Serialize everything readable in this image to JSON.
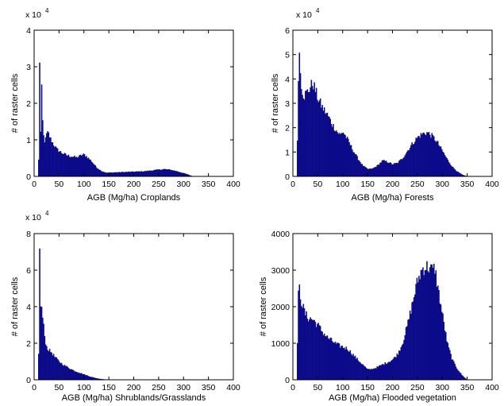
{
  "colors": {
    "bar": "#0b0b8a"
  },
  "chart_data": [
    {
      "type": "bar",
      "xlabel": "AGB (Mg/ha) Croplands",
      "ylabel": "# of raster cells",
      "xlim": [
        0,
        400
      ],
      "ylim": [
        0,
        40000
      ],
      "x_ticks": [
        "0",
        "50",
        "100",
        "150",
        "200",
        "250",
        "300",
        "350",
        "400"
      ],
      "y_ticks": [
        "0",
        "1",
        "2",
        "3",
        "4"
      ],
      "y_exponent": {
        "base": "x 10",
        "power": "4"
      },
      "bin_width": 2,
      "profile": [
        [
          8,
          0
        ],
        [
          10,
          9000
        ],
        [
          11,
          32000
        ],
        [
          12,
          9000
        ],
        [
          13,
          12000
        ],
        [
          14,
          18000
        ],
        [
          15,
          23500
        ],
        [
          16,
          18000
        ],
        [
          18,
          12000
        ],
        [
          20,
          10000
        ],
        [
          22,
          9500
        ],
        [
          25,
          11500
        ],
        [
          28,
          12000
        ],
        [
          32,
          10500
        ],
        [
          38,
          9000
        ],
        [
          45,
          7500
        ],
        [
          55,
          6500
        ],
        [
          65,
          5800
        ],
        [
          75,
          5500
        ],
        [
          85,
          5200
        ],
        [
          95,
          5800
        ],
        [
          100,
          6000
        ],
        [
          105,
          5500
        ],
        [
          115,
          4200
        ],
        [
          125,
          2500
        ],
        [
          135,
          1500
        ],
        [
          145,
          1000
        ],
        [
          160,
          1100
        ],
        [
          180,
          1200
        ],
        [
          200,
          1300
        ],
        [
          220,
          1400
        ],
        [
          240,
          1700
        ],
        [
          260,
          2000
        ],
        [
          275,
          1800
        ],
        [
          290,
          1300
        ],
        [
          305,
          700
        ],
        [
          315,
          200
        ],
        [
          320,
          0
        ]
      ]
    },
    {
      "type": "bar",
      "xlabel": "AGB (Mg/ha) Forests",
      "ylabel": "# of raster cells",
      "xlim": [
        0,
        400
      ],
      "ylim": [
        0,
        60000
      ],
      "x_ticks": [
        "0",
        "50",
        "100",
        "150",
        "200",
        "250",
        "300",
        "350",
        "400"
      ],
      "y_ticks": [
        "0",
        "1",
        "2",
        "3",
        "4",
        "5",
        "6"
      ],
      "y_exponent": {
        "base": "x 10",
        "power": "4"
      },
      "bin_width": 2,
      "profile": [
        [
          8,
          0
        ],
        [
          10,
          30000
        ],
        [
          12,
          54000
        ],
        [
          14,
          46000
        ],
        [
          16,
          40000
        ],
        [
          18,
          36000
        ],
        [
          22,
          33000
        ],
        [
          26,
          34000
        ],
        [
          30,
          35000
        ],
        [
          36,
          37000
        ],
        [
          40,
          38500
        ],
        [
          44,
          36000
        ],
        [
          50,
          32000
        ],
        [
          60,
          28000
        ],
        [
          70,
          25000
        ],
        [
          80,
          21000
        ],
        [
          90,
          18000
        ],
        [
          95,
          17000
        ],
        [
          100,
          18500
        ],
        [
          110,
          15000
        ],
        [
          120,
          11000
        ],
        [
          130,
          7500
        ],
        [
          140,
          4500
        ],
        [
          150,
          3000
        ],
        [
          160,
          3200
        ],
        [
          170,
          4500
        ],
        [
          180,
          6500
        ],
        [
          190,
          6000
        ],
        [
          200,
          5000
        ],
        [
          210,
          5500
        ],
        [
          220,
          7500
        ],
        [
          230,
          10500
        ],
        [
          240,
          13500
        ],
        [
          250,
          16000
        ],
        [
          260,
          17500
        ],
        [
          270,
          18000
        ],
        [
          280,
          16500
        ],
        [
          290,
          14000
        ],
        [
          300,
          10500
        ],
        [
          310,
          7000
        ],
        [
          320,
          4000
        ],
        [
          330,
          2000
        ],
        [
          340,
          700
        ],
        [
          350,
          0
        ]
      ]
    },
    {
      "type": "bar",
      "xlabel": "AGB (Mg/ha) Shrublands/Grasslands",
      "ylabel": "# of raster cells",
      "xlim": [
        0,
        400
      ],
      "ylim": [
        0,
        80000
      ],
      "x_ticks": [
        "0",
        "50",
        "100",
        "150",
        "200",
        "250",
        "300",
        "350",
        "400"
      ],
      "y_ticks": [
        "0",
        "2",
        "4",
        "6",
        "8"
      ],
      "y_exponent": {
        "base": "x 10",
        "power": "4"
      },
      "bin_width": 2,
      "profile": [
        [
          8,
          0
        ],
        [
          10,
          30000
        ],
        [
          11,
          69000
        ],
        [
          12,
          40000
        ],
        [
          14,
          42000
        ],
        [
          16,
          36000
        ],
        [
          18,
          32000
        ],
        [
          20,
          26000
        ],
        [
          22,
          22000
        ],
        [
          25,
          18000
        ],
        [
          30,
          16000
        ],
        [
          35,
          15000
        ],
        [
          40,
          13000
        ],
        [
          45,
          11500
        ],
        [
          50,
          10000
        ],
        [
          60,
          8000
        ],
        [
          70,
          6500
        ],
        [
          80,
          5000
        ],
        [
          90,
          4000
        ],
        [
          100,
          3000
        ],
        [
          110,
          2000
        ],
        [
          120,
          1200
        ],
        [
          130,
          600
        ],
        [
          140,
          300
        ],
        [
          150,
          0
        ]
      ]
    },
    {
      "type": "bar",
      "xlabel": "AGB (Mg/ha) Flooded vegetation",
      "ylabel": "# of raster cells",
      "xlim": [
        0,
        400
      ],
      "ylim": [
        0,
        4000
      ],
      "x_ticks": [
        "0",
        "50",
        "100",
        "150",
        "200",
        "250",
        "300",
        "350",
        "400"
      ],
      "y_ticks": [
        "0",
        "1000",
        "2000",
        "3000",
        "4000"
      ],
      "bin_width": 2,
      "profile": [
        [
          8,
          0
        ],
        [
          10,
          2000
        ],
        [
          12,
          2600
        ],
        [
          16,
          2200
        ],
        [
          20,
          2000
        ],
        [
          25,
          1800
        ],
        [
          30,
          1700
        ],
        [
          40,
          1650
        ],
        [
          50,
          1500
        ],
        [
          60,
          1300
        ],
        [
          70,
          1150
        ],
        [
          80,
          1050
        ],
        [
          90,
          950
        ],
        [
          100,
          900
        ],
        [
          110,
          850
        ],
        [
          120,
          700
        ],
        [
          130,
          550
        ],
        [
          140,
          420
        ],
        [
          150,
          280
        ],
        [
          160,
          300
        ],
        [
          170,
          350
        ],
        [
          180,
          420
        ],
        [
          190,
          480
        ],
        [
          200,
          550
        ],
        [
          210,
          700
        ],
        [
          220,
          1000
        ],
        [
          230,
          1500
        ],
        [
          240,
          2100
        ],
        [
          250,
          2700
        ],
        [
          260,
          3050
        ],
        [
          270,
          3100
        ],
        [
          280,
          3000
        ],
        [
          285,
          3050
        ],
        [
          290,
          2600
        ],
        [
          300,
          1800
        ],
        [
          310,
          1000
        ],
        [
          320,
          550
        ],
        [
          330,
          300
        ],
        [
          340,
          120
        ],
        [
          350,
          0
        ]
      ]
    }
  ]
}
